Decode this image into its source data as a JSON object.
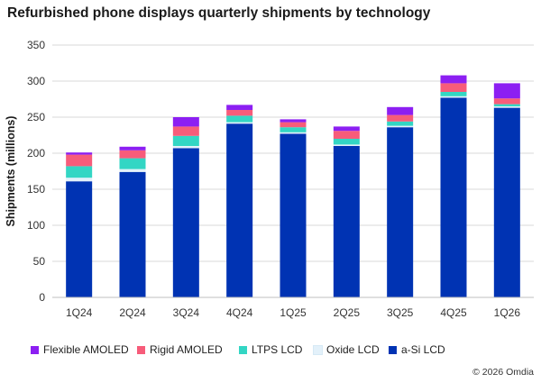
{
  "chart_data": {
    "type": "bar",
    "stacked": true,
    "title": "Refurbished phone displays quarterly shipments by technology",
    "ylabel": "Shipments (millions)",
    "xlabel": "",
    "ylim": [
      0,
      350
    ],
    "yticks": [
      0,
      50,
      100,
      150,
      200,
      250,
      300,
      350
    ],
    "grid": true,
    "legend_position": "bottom",
    "categories": [
      "1Q24",
      "2Q24",
      "3Q24",
      "4Q24",
      "1Q25",
      "2Q25",
      "3Q25",
      "4Q25",
      "1Q26"
    ],
    "series": [
      {
        "name": "a-Si LCD",
        "color": "#0033b3",
        "values": [
          161,
          174,
          207,
          241,
          227,
          210,
          236,
          277,
          263
        ]
      },
      {
        "name": "Oxide LCD",
        "color": "#e3f1fa",
        "values": [
          5,
          4,
          3,
          2,
          2,
          2,
          2,
          2,
          2
        ]
      },
      {
        "name": "LTPS LCD",
        "color": "#33d6c4",
        "values": [
          16,
          15,
          14,
          9,
          7,
          8,
          6,
          6,
          3
        ]
      },
      {
        "name": "Rigid AMOLED",
        "color": "#f75c7a",
        "values": [
          16,
          11,
          13,
          8,
          7,
          11,
          9,
          12,
          8
        ]
      },
      {
        "name": "Flexible AMOLED",
        "color": "#8c1ff2",
        "values": [
          3,
          5,
          13,
          7,
          4,
          6,
          11,
          11,
          21
        ]
      }
    ],
    "legend_order": [
      "Flexible AMOLED",
      "Rigid AMOLED",
      "LTPS LCD",
      "Oxide LCD",
      "a-Si LCD"
    ]
  },
  "copyright": "© 2026 Omdia"
}
